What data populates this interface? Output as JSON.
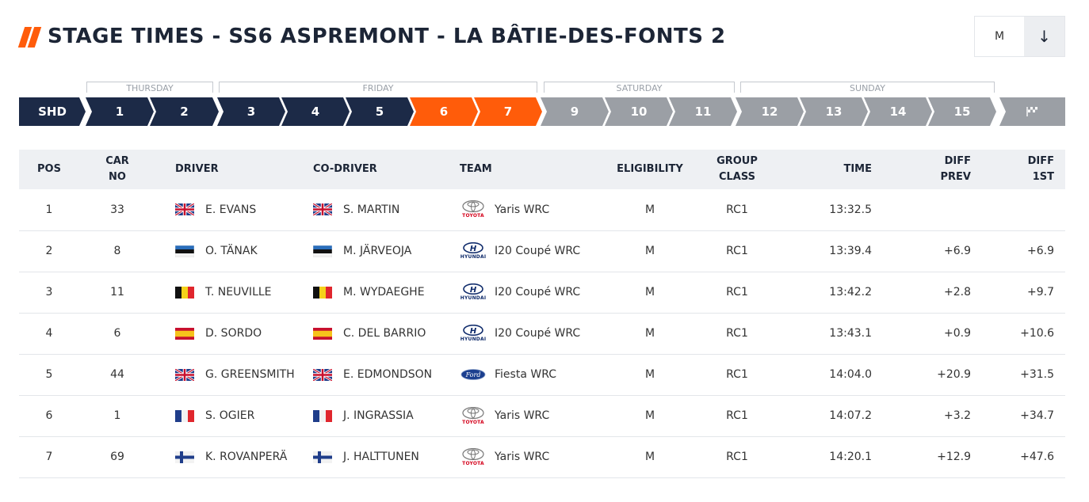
{
  "header": {
    "title": "STAGE TIMES - SS6 ASPREMONT - LA BÂTIE-DES-FONTS 2",
    "filter_value": "M",
    "filter_icon": "arrow-down-icon"
  },
  "days": [
    {
      "label": "THURSDAY"
    },
    {
      "label": "FRIDAY"
    },
    {
      "label": "SATURDAY"
    },
    {
      "label": "SUNDAY"
    }
  ],
  "stages": [
    {
      "label": "SHD",
      "state": "done"
    },
    {
      "label": "1",
      "state": "done"
    },
    {
      "label": "2",
      "state": "done"
    },
    {
      "label": "3",
      "state": "done"
    },
    {
      "label": "4",
      "state": "done"
    },
    {
      "label": "5",
      "state": "done"
    },
    {
      "label": "6",
      "state": "active"
    },
    {
      "label": "7",
      "state": "active"
    },
    {
      "label": "9",
      "state": "future"
    },
    {
      "label": "10",
      "state": "future"
    },
    {
      "label": "11",
      "state": "future"
    },
    {
      "label": "12",
      "state": "future"
    },
    {
      "label": "13",
      "state": "future"
    },
    {
      "label": "14",
      "state": "future"
    },
    {
      "label": "15",
      "state": "future"
    },
    {
      "label": "finish-flag-icon",
      "state": "future"
    }
  ],
  "colors": {
    "accent": "#ff5c0a",
    "done": "#1c2a47",
    "future": "#9b9fa5"
  },
  "table": {
    "headers": {
      "pos": "POS",
      "car_no_1": "CAR",
      "car_no_2": "NO",
      "driver": "DRIVER",
      "codriver": "CO-DRIVER",
      "team": "TEAM",
      "eligibility": "ELIGIBILITY",
      "group_1": "GROUP",
      "group_2": "CLASS",
      "time": "TIME",
      "diff_prev_1": "DIFF",
      "diff_prev_2": "PREV",
      "diff_1st_1": "DIFF",
      "diff_1st_2": "1ST"
    },
    "rows": [
      {
        "pos": "1",
        "car": "33",
        "driver": "E. EVANS",
        "driver_flag": "gb",
        "codriver": "S. MARTIN",
        "codriver_flag": "gb",
        "team_brand": "toyota",
        "team_brand_label": "TOYOTA",
        "team": "Yaris WRC",
        "elig": "M",
        "group": "RC1",
        "time": "13:32.5",
        "diff_prev": "",
        "diff_1st": ""
      },
      {
        "pos": "2",
        "car": "8",
        "driver": "O. TÄNAK",
        "driver_flag": "ee",
        "codriver": "M. JÄRVEOJA",
        "codriver_flag": "ee",
        "team_brand": "hyundai",
        "team_brand_label": "HYUNDAI",
        "team": "I20 Coupé WRC",
        "elig": "M",
        "group": "RC1",
        "time": "13:39.4",
        "diff_prev": "+6.9",
        "diff_1st": "+6.9"
      },
      {
        "pos": "3",
        "car": "11",
        "driver": "T. NEUVILLE",
        "driver_flag": "be",
        "codriver": "M. WYDAEGHE",
        "codriver_flag": "be",
        "team_brand": "hyundai",
        "team_brand_label": "HYUNDAI",
        "team": "I20 Coupé WRC",
        "elig": "M",
        "group": "RC1",
        "time": "13:42.2",
        "diff_prev": "+2.8",
        "diff_1st": "+9.7"
      },
      {
        "pos": "4",
        "car": "6",
        "driver": "D. SORDO",
        "driver_flag": "es",
        "codriver": "C. DEL BARRIO",
        "codriver_flag": "es",
        "team_brand": "hyundai",
        "team_brand_label": "HYUNDAI",
        "team": "I20 Coupé WRC",
        "elig": "M",
        "group": "RC1",
        "time": "13:43.1",
        "diff_prev": "+0.9",
        "diff_1st": "+10.6"
      },
      {
        "pos": "5",
        "car": "44",
        "driver": "G. GREENSMITH",
        "driver_flag": "gb",
        "codriver": "E. EDMONDSON",
        "codriver_flag": "gb",
        "team_brand": "ford",
        "team_brand_label": "Ford",
        "team": "Fiesta WRC",
        "elig": "M",
        "group": "RC1",
        "time": "14:04.0",
        "diff_prev": "+20.9",
        "diff_1st": "+31.5"
      },
      {
        "pos": "6",
        "car": "1",
        "driver": "S. OGIER",
        "driver_flag": "fr",
        "codriver": "J. INGRASSIA",
        "codriver_flag": "fr",
        "team_brand": "toyota",
        "team_brand_label": "TOYOTA",
        "team": "Yaris WRC",
        "elig": "M",
        "group": "RC1",
        "time": "14:07.2",
        "diff_prev": "+3.2",
        "diff_1st": "+34.7"
      },
      {
        "pos": "7",
        "car": "69",
        "driver": "K. ROVANPERÄ",
        "driver_flag": "fi",
        "codriver": "J. HALTTUNEN",
        "codriver_flag": "fi",
        "team_brand": "toyota",
        "team_brand_label": "TOYOTA",
        "team": "Yaris WRC",
        "elig": "M",
        "group": "RC1",
        "time": "14:20.1",
        "diff_prev": "+12.9",
        "diff_1st": "+47.6"
      }
    ]
  }
}
